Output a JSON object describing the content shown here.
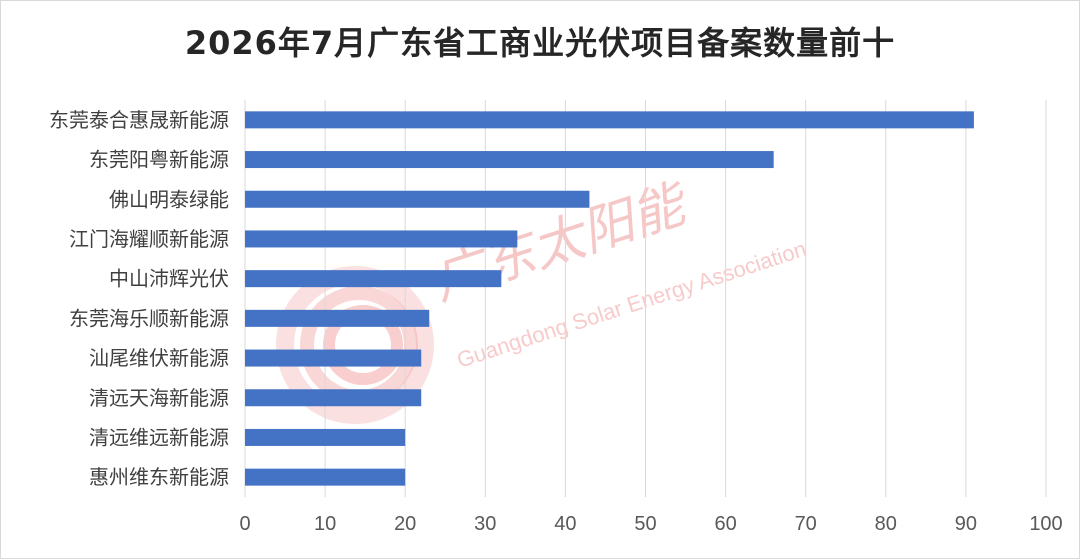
{
  "title": "2026年7月广东省工商业光伏项目备案数量前十",
  "watermark": {
    "cn": "广东太阳能",
    "en": "Guangdong Solar Energy Association",
    "color": "#f2a6a6"
  },
  "chart_data": {
    "type": "bar",
    "orientation": "horizontal",
    "categories": [
      "东莞泰合惠晟新能源",
      "东莞阳粤新能源",
      "佛山明泰绿能",
      "江门海耀顺新能源",
      "中山沛辉光伏",
      "东莞海乐顺新能源",
      "汕尾维伏新能源",
      "清远天海新能源",
      "清远维远新能源",
      "惠州维东新能源"
    ],
    "values": [
      91,
      66,
      43,
      34,
      32,
      23,
      22,
      22,
      20,
      20
    ],
    "xlim": [
      0,
      100
    ],
    "xticks": [
      "0",
      "10",
      "20",
      "30",
      "40",
      "50",
      "60",
      "70",
      "80",
      "90",
      "100"
    ],
    "grid": "vertical",
    "bar_color": "#4472c4",
    "grid_color": "#d9d9d9"
  }
}
